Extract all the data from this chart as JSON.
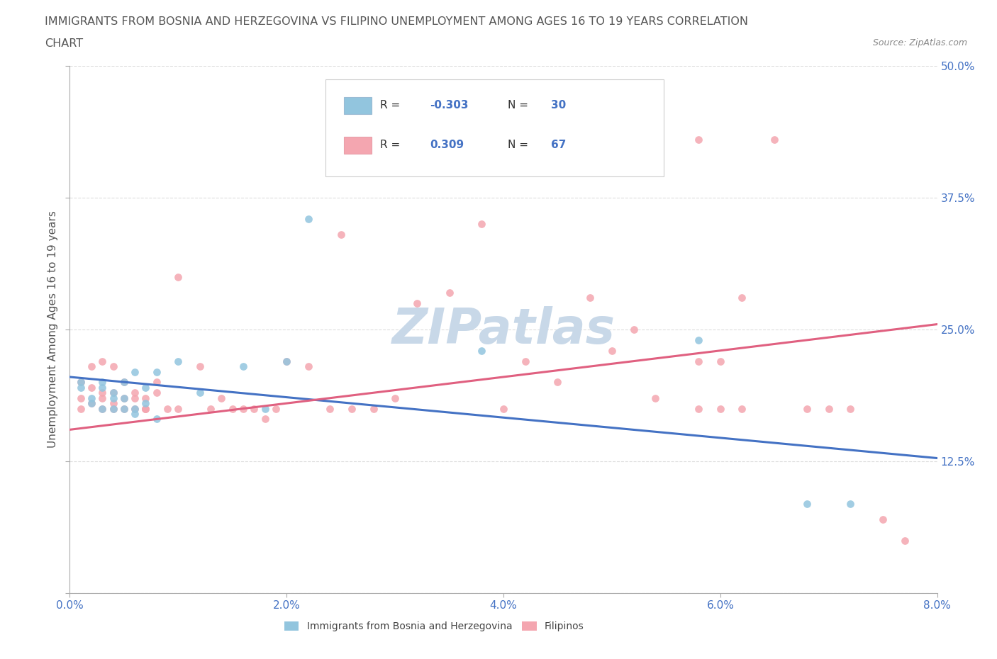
{
  "title_line1": "IMMIGRANTS FROM BOSNIA AND HERZEGOVINA VS FILIPINO UNEMPLOYMENT AMONG AGES 16 TO 19 YEARS CORRELATION",
  "title_line2": "CHART",
  "source": "Source: ZipAtlas.com",
  "ylabel": "Unemployment Among Ages 16 to 19 years",
  "xlim": [
    0.0,
    0.08
  ],
  "ylim": [
    0.0,
    0.5
  ],
  "xticks": [
    0.0,
    0.02,
    0.04,
    0.06,
    0.08
  ],
  "xticklabels": [
    "0.0%",
    "2.0%",
    "4.0%",
    "6.0%",
    "8.0%"
  ],
  "yticks": [
    0.0,
    0.125,
    0.25,
    0.375,
    0.5
  ],
  "yticklabels": [
    "",
    "12.5%",
    "25.0%",
    "37.5%",
    "50.0%"
  ],
  "legend_label1": "Immigrants from Bosnia and Herzegovina",
  "legend_label2": "Filipinos",
  "R1": "-0.303",
  "N1": "30",
  "R2": "0.309",
  "N2": "67",
  "color_blue": "#92C5DE",
  "color_pink": "#F4A6B0",
  "line_color_blue": "#4472C4",
  "line_color_pink": "#E06080",
  "watermark": "ZIPatlas",
  "blue_scatter_x": [
    0.001,
    0.001,
    0.002,
    0.002,
    0.003,
    0.003,
    0.003,
    0.004,
    0.004,
    0.004,
    0.005,
    0.005,
    0.005,
    0.006,
    0.006,
    0.006,
    0.007,
    0.007,
    0.008,
    0.008,
    0.01,
    0.012,
    0.016,
    0.018,
    0.02,
    0.022,
    0.038,
    0.058,
    0.068,
    0.072
  ],
  "blue_scatter_y": [
    0.2,
    0.195,
    0.18,
    0.185,
    0.195,
    0.175,
    0.2,
    0.19,
    0.175,
    0.185,
    0.2,
    0.175,
    0.185,
    0.17,
    0.21,
    0.175,
    0.18,
    0.195,
    0.165,
    0.21,
    0.22,
    0.19,
    0.215,
    0.175,
    0.22,
    0.355,
    0.23,
    0.24,
    0.085,
    0.085
  ],
  "pink_scatter_x": [
    0.001,
    0.001,
    0.001,
    0.002,
    0.002,
    0.002,
    0.003,
    0.003,
    0.003,
    0.003,
    0.004,
    0.004,
    0.004,
    0.004,
    0.005,
    0.005,
    0.005,
    0.006,
    0.006,
    0.006,
    0.007,
    0.007,
    0.007,
    0.007,
    0.008,
    0.008,
    0.009,
    0.01,
    0.01,
    0.012,
    0.013,
    0.014,
    0.015,
    0.016,
    0.017,
    0.018,
    0.019,
    0.02,
    0.022,
    0.024,
    0.025,
    0.026,
    0.028,
    0.03,
    0.032,
    0.035,
    0.038,
    0.04,
    0.042,
    0.045,
    0.048,
    0.05,
    0.052,
    0.054,
    0.058,
    0.06,
    0.062,
    0.065,
    0.068,
    0.07,
    0.072,
    0.075,
    0.077,
    0.058,
    0.058,
    0.06,
    0.062
  ],
  "pink_scatter_y": [
    0.2,
    0.185,
    0.175,
    0.195,
    0.18,
    0.215,
    0.19,
    0.175,
    0.185,
    0.22,
    0.18,
    0.175,
    0.19,
    0.215,
    0.175,
    0.185,
    0.2,
    0.175,
    0.19,
    0.185,
    0.175,
    0.185,
    0.175,
    0.175,
    0.2,
    0.19,
    0.175,
    0.3,
    0.175,
    0.215,
    0.175,
    0.185,
    0.175,
    0.175,
    0.175,
    0.165,
    0.175,
    0.22,
    0.215,
    0.175,
    0.34,
    0.175,
    0.175,
    0.185,
    0.275,
    0.285,
    0.35,
    0.175,
    0.22,
    0.2,
    0.28,
    0.23,
    0.25,
    0.185,
    0.43,
    0.22,
    0.28,
    0.43,
    0.175,
    0.175,
    0.175,
    0.07,
    0.05,
    0.22,
    0.175,
    0.175,
    0.175
  ],
  "blue_trend_x": [
    0.0,
    0.08
  ],
  "blue_trend_y": [
    0.205,
    0.128
  ],
  "pink_trend_x": [
    0.0,
    0.08
  ],
  "pink_trend_y": [
    0.155,
    0.255
  ],
  "background_color": "#FFFFFF",
  "grid_color": "#DDDDDD",
  "title_color": "#555555",
  "tick_color": "#4472C4",
  "watermark_color": "#C8D8E8",
  "marker_size": 60,
  "marker_linewidth": 1.5
}
